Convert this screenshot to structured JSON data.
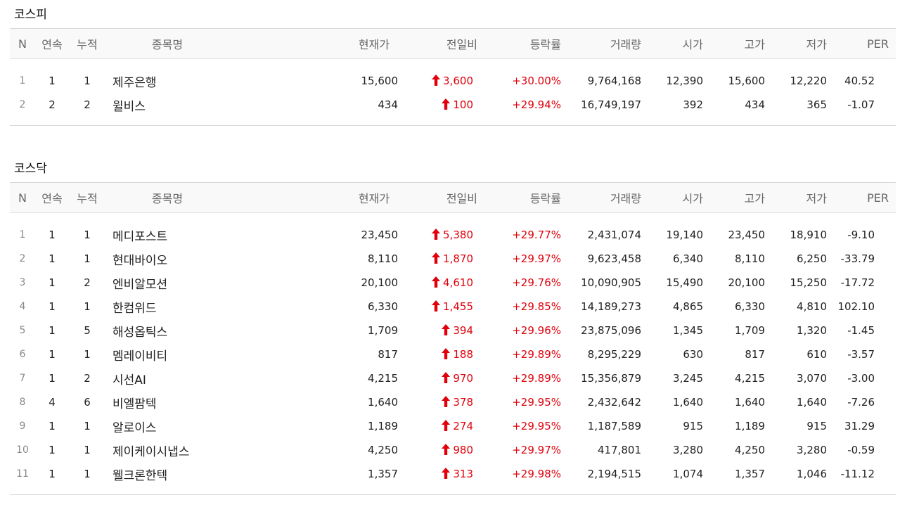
{
  "colors": {
    "up": "#e0000b",
    "header_bg": "#f9f9f9",
    "border": "#d8d8d8"
  },
  "icons": {
    "up_arrow": "up-arrow-icon"
  },
  "columns": {
    "n": "N",
    "streak": "연속",
    "cumulative": "누적",
    "name": "종목명",
    "price": "현재가",
    "diff": "전일비",
    "rate": "등락률",
    "volume": "거래량",
    "open": "시가",
    "high": "고가",
    "low": "저가",
    "per": "PER"
  },
  "kospi": {
    "title": "코스피",
    "rows": [
      {
        "n": "1",
        "streak": "1",
        "cum": "1",
        "name": "제주은행",
        "price": "15,600",
        "diff": "3,600",
        "rate": "+30.00%",
        "volume": "9,764,168",
        "open": "12,390",
        "high": "15,600",
        "low": "12,220",
        "per": "40.52"
      },
      {
        "n": "2",
        "streak": "2",
        "cum": "2",
        "name": "윌비스",
        "price": "434",
        "diff": "100",
        "rate": "+29.94%",
        "volume": "16,749,197",
        "open": "392",
        "high": "434",
        "low": "365",
        "per": "-1.07"
      }
    ]
  },
  "kosdaq": {
    "title": "코스닥",
    "rows": [
      {
        "n": "1",
        "streak": "1",
        "cum": "1",
        "name": "메디포스트",
        "price": "23,450",
        "diff": "5,380",
        "rate": "+29.77%",
        "volume": "2,431,074",
        "open": "19,140",
        "high": "23,450",
        "low": "18,910",
        "per": "-9.10"
      },
      {
        "n": "2",
        "streak": "1",
        "cum": "1",
        "name": "현대바이오",
        "price": "8,110",
        "diff": "1,870",
        "rate": "+29.97%",
        "volume": "9,623,458",
        "open": "6,340",
        "high": "8,110",
        "low": "6,250",
        "per": "-33.79"
      },
      {
        "n": "3",
        "streak": "1",
        "cum": "2",
        "name": "엔비알모션",
        "price": "20,100",
        "diff": "4,610",
        "rate": "+29.76%",
        "volume": "10,090,905",
        "open": "15,490",
        "high": "20,100",
        "low": "15,250",
        "per": "-17.72"
      },
      {
        "n": "4",
        "streak": "1",
        "cum": "1",
        "name": "한컴위드",
        "price": "6,330",
        "diff": "1,455",
        "rate": "+29.85%",
        "volume": "14,189,273",
        "open": "4,865",
        "high": "6,330",
        "low": "4,810",
        "per": "102.10"
      },
      {
        "n": "5",
        "streak": "1",
        "cum": "5",
        "name": "해성옵틱스",
        "price": "1,709",
        "diff": "394",
        "rate": "+29.96%",
        "volume": "23,875,096",
        "open": "1,345",
        "high": "1,709",
        "low": "1,320",
        "per": "-1.45"
      },
      {
        "n": "6",
        "streak": "1",
        "cum": "1",
        "name": "멤레이비티",
        "price": "817",
        "diff": "188",
        "rate": "+29.89%",
        "volume": "8,295,229",
        "open": "630",
        "high": "817",
        "low": "610",
        "per": "-3.57"
      },
      {
        "n": "7",
        "streak": "1",
        "cum": "2",
        "name": "시선AI",
        "price": "4,215",
        "diff": "970",
        "rate": "+29.89%",
        "volume": "15,356,879",
        "open": "3,245",
        "high": "4,215",
        "low": "3,070",
        "per": "-3.00"
      },
      {
        "n": "8",
        "streak": "4",
        "cum": "6",
        "name": "비엘팜텍",
        "price": "1,640",
        "diff": "378",
        "rate": "+29.95%",
        "volume": "2,432,642",
        "open": "1,640",
        "high": "1,640",
        "low": "1,640",
        "per": "-7.26"
      },
      {
        "n": "9",
        "streak": "1",
        "cum": "1",
        "name": "알로이스",
        "price": "1,189",
        "diff": "274",
        "rate": "+29.95%",
        "volume": "1,187,589",
        "open": "915",
        "high": "1,189",
        "low": "915",
        "per": "31.29"
      },
      {
        "n": "10",
        "streak": "1",
        "cum": "1",
        "name": "제이케이시냅스",
        "price": "4,250",
        "diff": "980",
        "rate": "+29.97%",
        "volume": "417,801",
        "open": "3,280",
        "high": "4,250",
        "low": "3,280",
        "per": "-0.59"
      },
      {
        "n": "11",
        "streak": "1",
        "cum": "1",
        "name": "웰크론한텍",
        "price": "1,357",
        "diff": "313",
        "rate": "+29.98%",
        "volume": "2,194,515",
        "open": "1,074",
        "high": "1,357",
        "low": "1,046",
        "per": "-11.12"
      }
    ]
  }
}
